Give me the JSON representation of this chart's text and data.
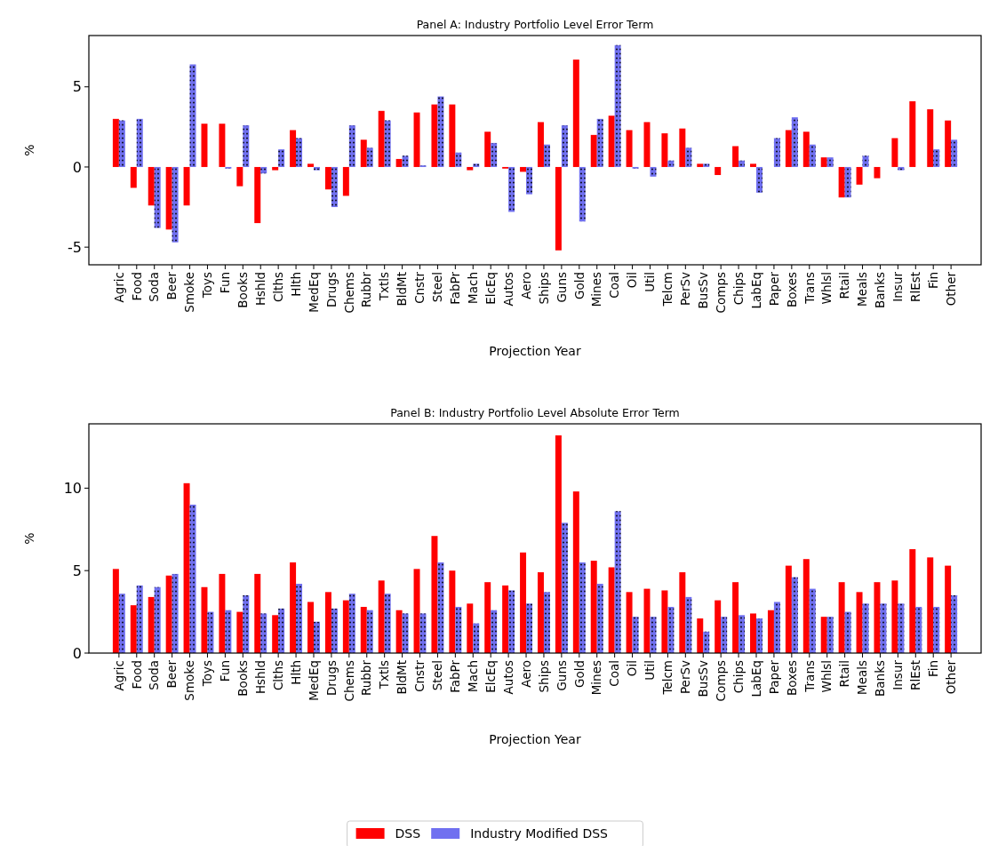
{
  "chart_data": [
    {
      "type": "bar",
      "title": "Panel A: Industry Portfolio Level  Error Term",
      "xlabel": "Projection Year",
      "ylabel": "%",
      "categories": [
        "Agric",
        "Food",
        "Soda",
        "Beer",
        "Smoke",
        "Toys",
        "Fun",
        "Books",
        "Hshld",
        "Clths",
        "Hlth",
        "MedEq",
        "Drugs",
        "Chems",
        "Rubbr",
        "Txtls",
        "BldMt",
        "Cnstr",
        "Steel",
        "FabPr",
        "Mach",
        "ElcEq",
        "Autos",
        "Aero",
        "Ships",
        "Guns",
        "Gold",
        "Mines",
        "Coal",
        "Oil",
        "Util",
        "Telcm",
        "PerSv",
        "BusSv",
        "Comps",
        "Chips",
        "LabEq",
        "Paper",
        "Boxes",
        "Trans",
        "Whlsl",
        "Rtail",
        "Meals",
        "Banks",
        "Insur",
        "RlEst",
        "Fin",
        "Other"
      ],
      "series": [
        {
          "name": "DSS",
          "color": "#ff0000",
          "values": [
            3.0,
            -1.3,
            -2.4,
            -3.9,
            -2.4,
            2.7,
            2.7,
            -1.2,
            -3.5,
            -0.2,
            2.3,
            0.2,
            -1.4,
            -1.8,
            1.7,
            3.5,
            0.5,
            3.4,
            3.9,
            3.9,
            -0.2,
            2.2,
            -0.1,
            -0.3,
            2.8,
            -5.2,
            6.7,
            2.0,
            3.2,
            2.3,
            2.8,
            2.1,
            2.4,
            0.2,
            -0.5,
            1.3,
            0.2,
            0,
            2.3,
            2.2,
            0.6,
            -1.9,
            -1.1,
            -0.7,
            1.8,
            4.1,
            3.6,
            2.9
          ]
        },
        {
          "name": "Industry Modified DSS",
          "color": "#7070f0",
          "values": [
            2.9,
            3.0,
            -3.8,
            -4.7,
            6.4,
            0,
            -0.1,
            2.6,
            -0.4,
            1.1,
            1.8,
            -0.2,
            -2.5,
            2.6,
            1.2,
            2.9,
            0.7,
            0.1,
            4.4,
            0.9,
            0.2,
            1.5,
            -2.8,
            -1.7,
            1.4,
            2.6,
            -3.4,
            3.0,
            7.6,
            -0.1,
            -0.6,
            0.4,
            1.2,
            0.2,
            0,
            0.4,
            -1.6,
            1.8,
            3.1,
            1.4,
            0.6,
            -1.9,
            0.7,
            0,
            -0.2,
            0,
            1.1,
            1.7
          ]
        }
      ],
      "ylim": [
        -6.1,
        8.2
      ],
      "yticks": [
        -5,
        0,
        5
      ],
      "grid": false,
      "legend": "bottom"
    },
    {
      "type": "bar",
      "title": "Panel B: Industry Portfolio Level Absolute Error Term",
      "xlabel": "Projection Year",
      "ylabel": "%",
      "categories": [
        "Agric",
        "Food",
        "Soda",
        "Beer",
        "Smoke",
        "Toys",
        "Fun",
        "Books",
        "Hshld",
        "Clths",
        "Hlth",
        "MedEq",
        "Drugs",
        "Chems",
        "Rubbr",
        "Txtls",
        "BldMt",
        "Cnstr",
        "Steel",
        "FabPr",
        "Mach",
        "ElcEq",
        "Autos",
        "Aero",
        "Ships",
        "Guns",
        "Gold",
        "Mines",
        "Coal",
        "Oil",
        "Util",
        "Telcm",
        "PerSv",
        "BusSv",
        "Comps",
        "Chips",
        "LabEq",
        "Paper",
        "Boxes",
        "Trans",
        "Whlsl",
        "Rtail",
        "Meals",
        "Banks",
        "Insur",
        "RlEst",
        "Fin",
        "Other"
      ],
      "series": [
        {
          "color": "#ff0000",
          "values": [
            5.1,
            2.9,
            3.4,
            4.7,
            10.3,
            4.0,
            4.8,
            2.5,
            4.8,
            2.3,
            5.5,
            3.1,
            3.7,
            3.2,
            2.8,
            4.4,
            2.6,
            5.1,
            7.1,
            5.0,
            3.0,
            4.3,
            4.1,
            6.1,
            4.9,
            13.2,
            9.8,
            5.6,
            5.2,
            3.7,
            3.9,
            3.8,
            4.9,
            2.1,
            3.2,
            4.3,
            2.4,
            2.6,
            5.3,
            5.7,
            2.2,
            4.3,
            3.7,
            4.3,
            4.4,
            6.3,
            5.8,
            5.3
          ]
        },
        {
          "color": "#7070f0",
          "values": [
            3.6,
            4.1,
            4.0,
            4.8,
            9.0,
            2.5,
            2.6,
            3.5,
            2.4,
            2.7,
            4.2,
            1.9,
            2.7,
            3.6,
            2.6,
            3.6,
            2.4,
            2.4,
            5.5,
            2.8,
            1.8,
            2.6,
            3.8,
            3.0,
            3.7,
            7.9,
            5.5,
            4.2,
            8.6,
            2.2,
            2.2,
            2.8,
            3.4,
            1.3,
            2.2,
            2.3,
            2.1,
            3.1,
            4.6,
            3.9,
            2.2,
            2.5,
            3.0,
            3.0,
            3.0,
            2.8,
            2.8,
            3.5
          ]
        }
      ],
      "ylim": [
        0,
        13.9
      ],
      "yticks": [
        0,
        5,
        10
      ],
      "grid": false
    }
  ]
}
